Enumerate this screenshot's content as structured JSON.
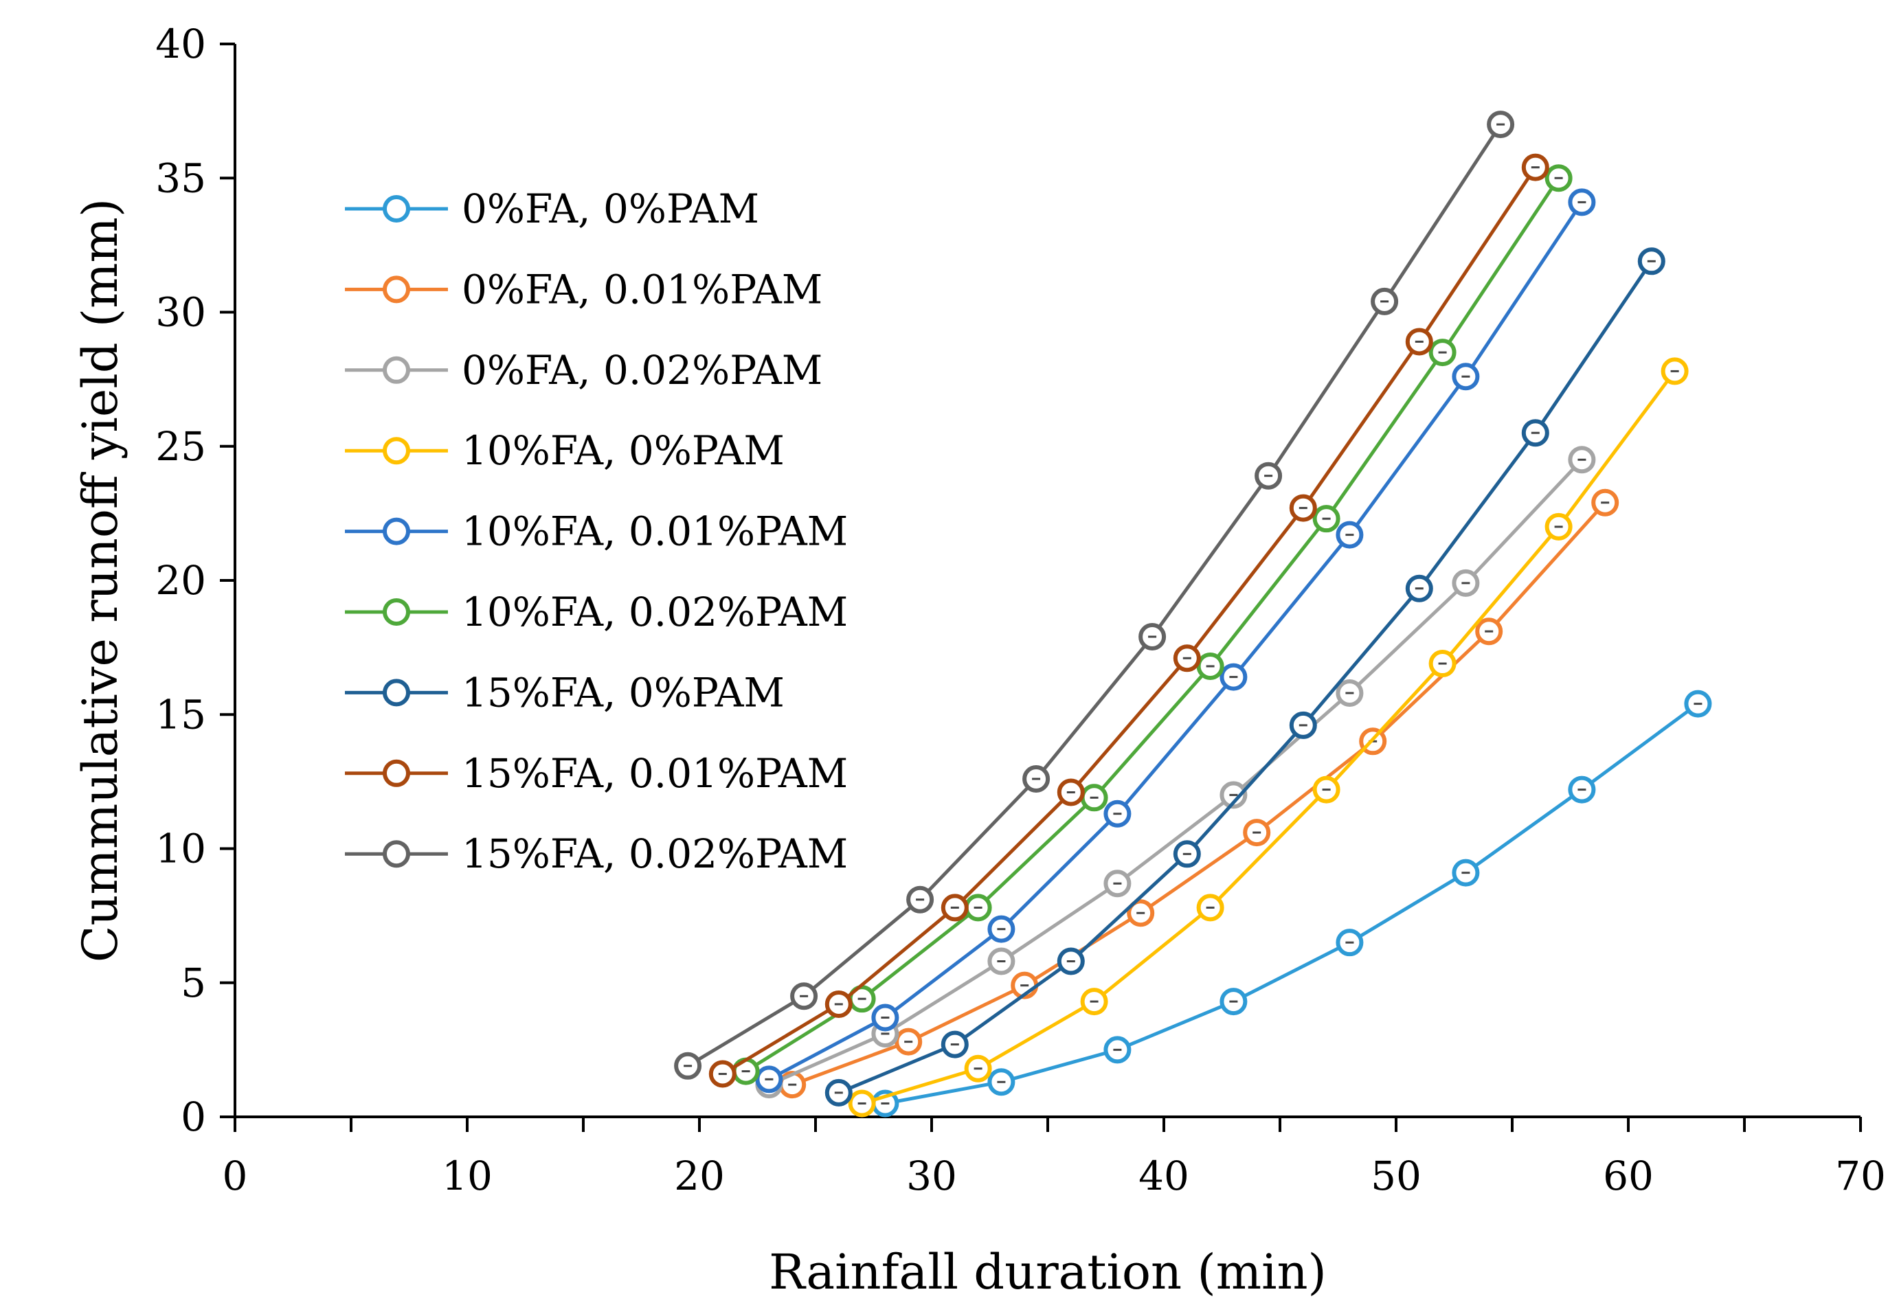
{
  "chart_data": {
    "type": "line",
    "title": "",
    "xlabel": "Rainfall duration (min)",
    "ylabel": "Cummulative runoff yield (mm)",
    "xlim": [
      0,
      70
    ],
    "ylim": [
      0,
      40
    ],
    "x_ticks": [
      "0",
      "10",
      "20",
      "30",
      "40",
      "50",
      "60",
      "70"
    ],
    "y_ticks": [
      "0",
      "5",
      "10",
      "15",
      "20",
      "25",
      "30",
      "35",
      "40"
    ],
    "grid": false,
    "legend_position": "upper-left",
    "series": [
      {
        "name": "0%FA, 0%PAM",
        "color": "#2E9BD6",
        "x": [
          28,
          33,
          38,
          43,
          48,
          53,
          58,
          63
        ],
        "y": [
          0.5,
          1.3,
          2.5,
          4.3,
          6.5,
          9.1,
          12.2,
          15.4
        ]
      },
      {
        "name": "0%FA, 0.01%PAM",
        "color": "#F28030",
        "x": [
          24,
          29,
          34,
          39,
          44,
          49,
          54,
          59
        ],
        "y": [
          1.2,
          2.8,
          4.9,
          7.6,
          10.6,
          14.0,
          18.1,
          22.9
        ]
      },
      {
        "name": "0%FA, 0.02%PAM",
        "color": "#A5A5A5",
        "x": [
          23,
          28,
          33,
          38,
          43,
          48,
          53,
          58
        ],
        "y": [
          1.2,
          3.1,
          5.8,
          8.7,
          12.0,
          15.8,
          19.9,
          24.5
        ]
      },
      {
        "name": "10%FA, 0%PAM",
        "color": "#FFC000",
        "x": [
          27,
          32,
          37,
          42,
          47,
          52,
          57,
          62
        ],
        "y": [
          0.5,
          1.8,
          4.3,
          7.8,
          12.2,
          16.9,
          22.0,
          27.8
        ]
      },
      {
        "name": "10%FA, 0.01%PAM",
        "color": "#2E75C9",
        "x": [
          23,
          28,
          33,
          38,
          43,
          48,
          53,
          58
        ],
        "y": [
          1.4,
          3.7,
          7.0,
          11.3,
          16.4,
          21.7,
          27.6,
          34.1
        ]
      },
      {
        "name": "10%FA, 0.02%PAM",
        "color": "#4EA83A",
        "x": [
          22,
          27,
          32,
          37,
          42,
          47,
          52,
          57
        ],
        "y": [
          1.7,
          4.4,
          7.8,
          11.9,
          16.8,
          22.3,
          28.5,
          35.0
        ]
      },
      {
        "name": "15%FA, 0%PAM",
        "color": "#1F5F93",
        "x": [
          26,
          31,
          36,
          41,
          46,
          51,
          56,
          61
        ],
        "y": [
          0.9,
          2.7,
          5.8,
          9.8,
          14.6,
          19.7,
          25.5,
          31.9
        ]
      },
      {
        "name": "15%FA, 0.01%PAM",
        "color": "#A9480E",
        "x": [
          21,
          26,
          31,
          36,
          41,
          46,
          51,
          56
        ],
        "y": [
          1.6,
          4.2,
          7.8,
          12.1,
          17.1,
          22.7,
          28.9,
          35.4
        ]
      },
      {
        "name": "15%FA, 0.02%PAM",
        "color": "#636363",
        "x": [
          19.5,
          24.5,
          29.5,
          34.5,
          39.5,
          44.5,
          49.5,
          54.5
        ],
        "y": [
          1.9,
          4.5,
          8.1,
          12.6,
          17.9,
          23.9,
          30.4,
          37.0
        ]
      }
    ]
  }
}
